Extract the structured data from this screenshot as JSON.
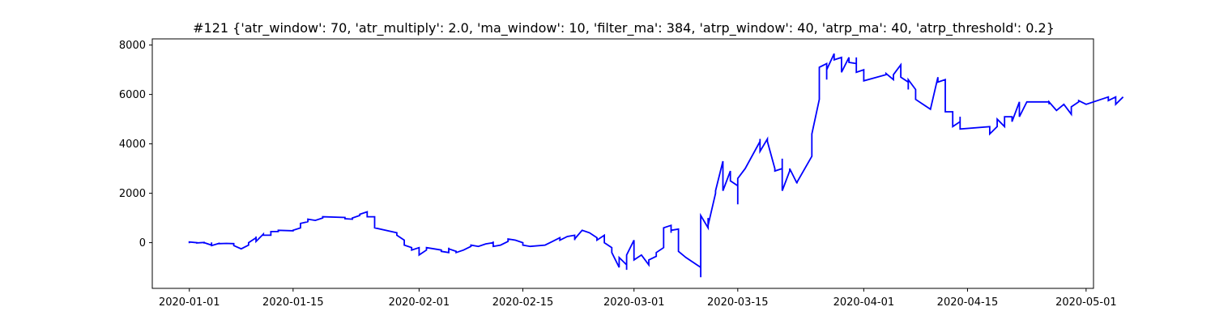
{
  "chart_data": {
    "type": "line",
    "title": "#121 {'atr_window': 70, 'atr_multiply': 2.0, 'ma_window': 10, 'filter_ma': 384, 'atrp_window': 40, 'atrp_ma': 40, 'atrp_threshold': 0.2}",
    "xlabel": "",
    "ylabel": "",
    "x_axis_type": "date",
    "xlim": [
      "2019-12-27",
      "2020-05-02"
    ],
    "ylim": [
      -1850,
      8250
    ],
    "grid": false,
    "legend": "none",
    "x_ticks": [
      "2020-01-01",
      "2020-01-15",
      "2020-02-01",
      "2020-02-15",
      "2020-03-01",
      "2020-03-15",
      "2020-04-01",
      "2020-04-15",
      "2020-05-01"
    ],
    "y_ticks": [
      0,
      2000,
      4000,
      6000,
      8000
    ],
    "series": [
      {
        "color": "#0000ff",
        "points": [
          [
            "2020-01-01",
            -20
          ],
          [
            "2020-01-01",
            30
          ],
          [
            "2020-01-02",
            0
          ],
          [
            "2020-01-02",
            -10
          ],
          [
            "2020-01-03",
            10
          ],
          [
            "2020-01-03",
            -40
          ],
          [
            "2020-01-03",
            0
          ],
          [
            "2020-01-04",
            -100
          ],
          [
            "2020-01-04",
            10
          ],
          [
            "2020-01-04",
            -120
          ],
          [
            "2020-01-05",
            -30
          ],
          [
            "2020-01-05",
            -40
          ],
          [
            "2020-01-06",
            -30
          ],
          [
            "2020-01-07",
            -40
          ],
          [
            "2020-01-07",
            -120
          ],
          [
            "2020-01-08",
            -250
          ],
          [
            "2020-01-09",
            -100
          ],
          [
            "2020-01-09",
            0
          ],
          [
            "2020-01-10",
            200
          ],
          [
            "2020-01-10",
            100
          ],
          [
            "2020-01-10",
            250
          ],
          [
            "2020-01-10",
            50
          ],
          [
            "2020-01-11",
            350
          ],
          [
            "2020-01-11",
            300
          ],
          [
            "2020-01-12",
            300
          ],
          [
            "2020-01-12",
            400
          ],
          [
            "2020-01-12",
            450
          ],
          [
            "2020-01-13",
            450
          ],
          [
            "2020-01-13",
            500
          ],
          [
            "2020-01-15",
            480
          ],
          [
            "2020-01-15",
            500
          ],
          [
            "2020-01-16",
            600
          ],
          [
            "2020-01-16",
            780
          ],
          [
            "2020-01-17",
            850
          ],
          [
            "2020-01-17",
            830
          ],
          [
            "2020-01-17",
            950
          ],
          [
            "2020-01-18",
            900
          ],
          [
            "2020-01-19",
            1000
          ],
          [
            "2020-01-19",
            1050
          ],
          [
            "2020-01-22",
            1020
          ],
          [
            "2020-01-22",
            970
          ],
          [
            "2020-01-23",
            950
          ],
          [
            "2020-01-23",
            1000
          ],
          [
            "2020-01-24",
            1100
          ],
          [
            "2020-01-24",
            1150
          ],
          [
            "2020-01-25",
            1250
          ],
          [
            "2020-01-25",
            1050
          ],
          [
            "2020-01-26",
            1050
          ],
          [
            "2020-01-26",
            600
          ],
          [
            "2020-01-29",
            400
          ],
          [
            "2020-01-29",
            300
          ],
          [
            "2020-01-30",
            100
          ],
          [
            "2020-01-30",
            -100
          ],
          [
            "2020-01-31",
            -200
          ],
          [
            "2020-01-31",
            -300
          ],
          [
            "2020-02-01",
            -200
          ],
          [
            "2020-02-01",
            -250
          ],
          [
            "2020-02-01",
            -500
          ],
          [
            "2020-02-02",
            -300
          ],
          [
            "2020-02-02",
            -200
          ],
          [
            "2020-02-02",
            -200
          ],
          [
            "2020-02-03",
            -250
          ],
          [
            "2020-02-04",
            -300
          ],
          [
            "2020-02-04",
            -350
          ],
          [
            "2020-02-05",
            -400
          ],
          [
            "2020-02-05",
            -200
          ],
          [
            "2020-02-05",
            -250
          ],
          [
            "2020-02-06",
            -350
          ],
          [
            "2020-02-06",
            -400
          ],
          [
            "2020-02-07",
            -300
          ],
          [
            "2020-02-08",
            -150
          ],
          [
            "2020-02-08",
            -100
          ],
          [
            "2020-02-09",
            -150
          ],
          [
            "2020-02-09",
            -150
          ],
          [
            "2020-02-10",
            -50
          ],
          [
            "2020-02-11",
            0
          ],
          [
            "2020-02-11",
            50
          ],
          [
            "2020-02-11",
            -150
          ],
          [
            "2020-02-12",
            -100
          ],
          [
            "2020-02-13",
            50
          ],
          [
            "2020-02-13",
            150
          ],
          [
            "2020-02-14",
            100
          ],
          [
            "2020-02-15",
            0
          ],
          [
            "2020-02-15",
            -100
          ],
          [
            "2020-02-16",
            -150
          ],
          [
            "2020-02-18",
            -100
          ],
          [
            "2020-02-19",
            50
          ],
          [
            "2020-02-20",
            200
          ],
          [
            "2020-02-20",
            100
          ],
          [
            "2020-02-21",
            250
          ],
          [
            "2020-02-22",
            300
          ],
          [
            "2020-02-22",
            100
          ],
          [
            "2020-02-22",
            150
          ],
          [
            "2020-02-23",
            500
          ],
          [
            "2020-02-24",
            400
          ],
          [
            "2020-02-25",
            200
          ],
          [
            "2020-02-25",
            100
          ],
          [
            "2020-02-26",
            300
          ],
          [
            "2020-02-26",
            0
          ],
          [
            "2020-02-27",
            -200
          ],
          [
            "2020-02-27",
            -400
          ],
          [
            "2020-02-28",
            -1000
          ],
          [
            "2020-02-28",
            -600
          ],
          [
            "2020-02-29",
            -900
          ],
          [
            "2020-02-29",
            -1100
          ],
          [
            "2020-02-29",
            -500
          ],
          [
            "2020-03-01",
            100
          ],
          [
            "2020-03-01",
            -200
          ],
          [
            "2020-03-01",
            50
          ],
          [
            "2020-03-01",
            -700
          ],
          [
            "2020-03-02",
            -500
          ],
          [
            "2020-03-03",
            -900
          ],
          [
            "2020-03-03",
            -700
          ],
          [
            "2020-03-04",
            -550
          ],
          [
            "2020-03-04",
            -400
          ],
          [
            "2020-03-05",
            -200
          ],
          [
            "2020-03-05",
            600
          ],
          [
            "2020-03-06",
            700
          ],
          [
            "2020-03-06",
            400
          ],
          [
            "2020-03-06",
            500
          ],
          [
            "2020-03-07",
            550
          ],
          [
            "2020-03-07",
            -350
          ],
          [
            "2020-03-08",
            -600
          ],
          [
            "2020-03-10",
            -1000
          ],
          [
            "2020-03-10",
            -1400
          ],
          [
            "2020-03-10",
            -300
          ],
          [
            "2020-03-10",
            1100
          ],
          [
            "2020-03-11",
            600
          ],
          [
            "2020-03-11",
            1000
          ],
          [
            "2020-03-11",
            650
          ],
          [
            "2020-03-11",
            700
          ],
          [
            "2020-03-12",
            2000
          ],
          [
            "2020-03-12",
            2100
          ],
          [
            "2020-03-13",
            3300
          ],
          [
            "2020-03-13",
            2500
          ],
          [
            "2020-03-13",
            2100
          ],
          [
            "2020-03-14",
            2900
          ],
          [
            "2020-03-14",
            2500
          ],
          [
            "2020-03-15",
            2300
          ],
          [
            "2020-03-15",
            1550
          ],
          [
            "2020-03-15",
            2600
          ],
          [
            "2020-03-16",
            3000
          ],
          [
            "2020-03-18",
            4100
          ],
          [
            "2020-03-18",
            4200
          ],
          [
            "2020-03-18",
            3700
          ],
          [
            "2020-03-19",
            4200
          ],
          [
            "2020-03-19",
            4100
          ],
          [
            "2020-03-20",
            3000
          ],
          [
            "2020-03-20",
            2900
          ],
          [
            "2020-03-21",
            3000
          ],
          [
            "2020-03-21",
            2600
          ],
          [
            "2020-03-21",
            3400
          ],
          [
            "2020-03-21",
            2100
          ],
          [
            "2020-03-22",
            2900
          ],
          [
            "2020-03-22",
            3000
          ],
          [
            "2020-03-23",
            2400
          ],
          [
            "2020-03-23",
            2450
          ],
          [
            "2020-03-25",
            3500
          ],
          [
            "2020-03-25",
            4400
          ],
          [
            "2020-03-26",
            5800
          ],
          [
            "2020-03-26",
            7100
          ],
          [
            "2020-03-27",
            7250
          ],
          [
            "2020-03-27",
            6600
          ],
          [
            "2020-03-27",
            7000
          ],
          [
            "2020-03-28",
            7650
          ],
          [
            "2020-03-28",
            7400
          ],
          [
            "2020-03-29",
            7500
          ],
          [
            "2020-03-29",
            7200
          ],
          [
            "2020-03-29",
            6900
          ],
          [
            "2020-03-30",
            7500
          ],
          [
            "2020-03-30",
            7300
          ],
          [
            "2020-03-31",
            7250
          ],
          [
            "2020-03-31",
            7500
          ],
          [
            "2020-03-31",
            6900
          ],
          [
            "2020-04-01",
            7000
          ],
          [
            "2020-04-01",
            6800
          ],
          [
            "2020-04-01",
            6550
          ],
          [
            "2020-04-04",
            6800
          ],
          [
            "2020-04-04",
            6850
          ],
          [
            "2020-04-05",
            6600
          ],
          [
            "2020-04-05",
            6800
          ],
          [
            "2020-04-06",
            7200
          ],
          [
            "2020-04-06",
            7100
          ],
          [
            "2020-04-06",
            6800
          ],
          [
            "2020-04-06",
            6700
          ],
          [
            "2020-04-07",
            6500
          ],
          [
            "2020-04-07",
            6200
          ],
          [
            "2020-04-07",
            6600
          ],
          [
            "2020-04-08",
            6200
          ],
          [
            "2020-04-08",
            5800
          ],
          [
            "2020-04-10",
            5400
          ],
          [
            "2020-04-11",
            6700
          ],
          [
            "2020-04-11",
            6500
          ],
          [
            "2020-04-12",
            6600
          ],
          [
            "2020-04-12",
            6200
          ],
          [
            "2020-04-12",
            5300
          ],
          [
            "2020-04-13",
            5300
          ],
          [
            "2020-04-13",
            4700
          ],
          [
            "2020-04-14",
            4900
          ],
          [
            "2020-04-14",
            5100
          ],
          [
            "2020-04-14",
            4600
          ],
          [
            "2020-04-18",
            4700
          ],
          [
            "2020-04-18",
            4400
          ],
          [
            "2020-04-19",
            4700
          ],
          [
            "2020-04-19",
            5000
          ],
          [
            "2020-04-20",
            4700
          ],
          [
            "2020-04-20",
            5100
          ],
          [
            "2020-04-21",
            5100
          ],
          [
            "2020-04-21",
            4900
          ],
          [
            "2020-04-22",
            5700
          ],
          [
            "2020-04-22",
            5100
          ],
          [
            "2020-04-23",
            5700
          ],
          [
            "2020-04-26",
            5700
          ],
          [
            "2020-04-26",
            5600
          ],
          [
            "2020-04-26",
            5700
          ],
          [
            "2020-04-27",
            5350
          ],
          [
            "2020-04-28",
            5600
          ],
          [
            "2020-04-29",
            5200
          ],
          [
            "2020-04-29",
            5500
          ],
          [
            "2020-04-30",
            5700
          ],
          [
            "2020-04-30",
            5750
          ],
          [
            "2020-05-01",
            5600
          ],
          [
            "2020-05-04",
            5900
          ],
          [
            "2020-05-04",
            5750
          ],
          [
            "2020-05-05",
            5900
          ],
          [
            "2020-05-05",
            5600
          ],
          [
            "2020-05-06",
            5900
          ]
        ]
      }
    ]
  }
}
